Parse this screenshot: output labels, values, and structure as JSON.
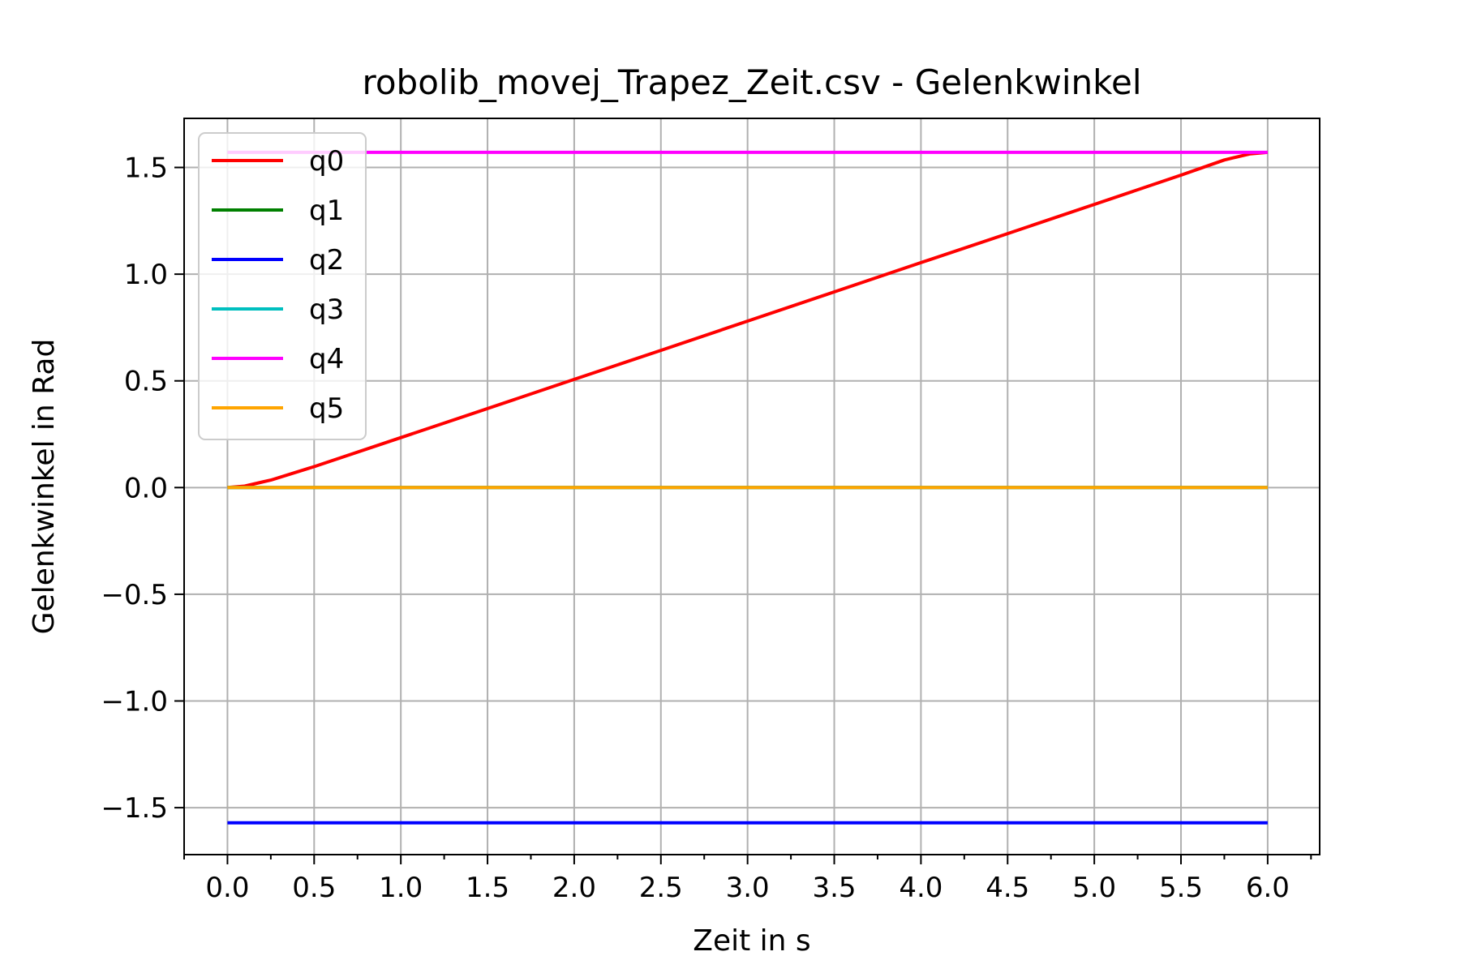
{
  "chart_data": {
    "type": "line",
    "title": "robolib_movej_Trapez_Zeit.csv - Gelenkwinkel",
    "xlabel": "Zeit in s",
    "ylabel": "Gelenkwinkel in Rad",
    "xlim": [
      -0.25,
      6.3
    ],
    "ylim": [
      -1.72,
      1.73
    ],
    "xticks": [
      0.0,
      0.5,
      1.0,
      1.5,
      2.0,
      2.5,
      3.0,
      3.5,
      4.0,
      4.5,
      5.0,
      5.5,
      6.0
    ],
    "xtick_labels": [
      "0.0",
      "0.5",
      "1.0",
      "1.5",
      "2.0",
      "2.5",
      "3.0",
      "3.5",
      "4.0",
      "4.5",
      "5.0",
      "5.5",
      "6.0"
    ],
    "xminor_ticks": [
      -0.25,
      0.25,
      0.75,
      1.25,
      1.75,
      2.25,
      2.75,
      3.25,
      3.75,
      4.25,
      4.75,
      5.25,
      5.75,
      6.25
    ],
    "yticks": [
      -1.5,
      -1.0,
      -0.5,
      0.0,
      0.5,
      1.0,
      1.5
    ],
    "ytick_labels": [
      "−1.5",
      "−1.0",
      "−0.5",
      "0.0",
      "0.5",
      "1.0",
      "1.5"
    ],
    "grid": true,
    "legend_position": "top-left",
    "series": [
      {
        "name": "q0",
        "color": "#ff0000",
        "x": [
          0.0,
          0.1,
          0.2,
          0.25,
          0.5,
          1.0,
          1.5,
          2.0,
          2.5,
          3.0,
          3.5,
          4.0,
          4.5,
          5.0,
          5.5,
          5.75,
          5.8,
          5.9,
          6.0
        ],
        "y": [
          0.0,
          0.007,
          0.026,
          0.035,
          0.098,
          0.234,
          0.37,
          0.507,
          0.643,
          0.78,
          0.917,
          1.054,
          1.19,
          1.327,
          1.464,
          1.535,
          1.545,
          1.564,
          1.5708
        ]
      },
      {
        "name": "q1",
        "color": "#008000",
        "x": [
          0.0,
          6.0
        ],
        "y": [
          0.0,
          0.0
        ]
      },
      {
        "name": "q2",
        "color": "#0000ff",
        "x": [
          0.0,
          6.0
        ],
        "y": [
          -1.5708,
          -1.5708
        ]
      },
      {
        "name": "q3",
        "color": "#00bfbf",
        "x": [
          0.0,
          6.0
        ],
        "y": [
          0.0,
          0.0
        ]
      },
      {
        "name": "q4",
        "color": "#ff00ff",
        "x": [
          0.0,
          6.0
        ],
        "y": [
          1.5708,
          1.5708
        ]
      },
      {
        "name": "q5",
        "color": "#ffa500",
        "x": [
          0.0,
          6.0
        ],
        "y": [
          0.0,
          0.0
        ]
      }
    ]
  }
}
